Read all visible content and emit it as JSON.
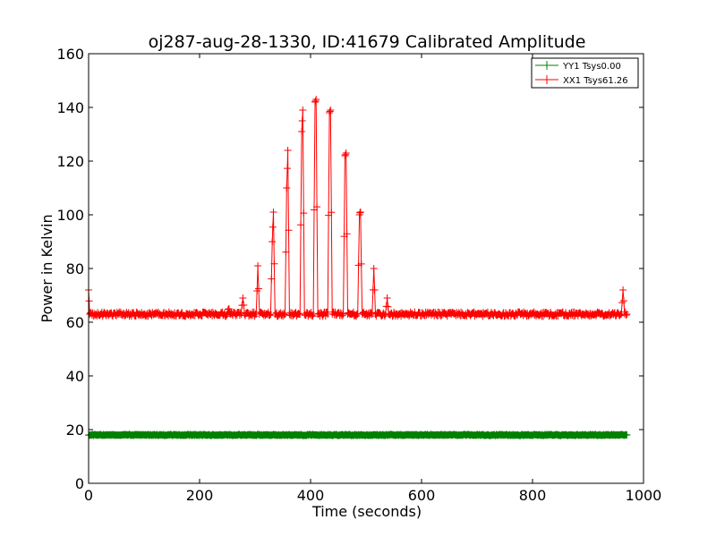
{
  "chart_data": {
    "type": "line",
    "title": "oj287-aug-28-1330, ID:41679 Calibrated Amplitude",
    "xlabel": "Time (seconds)",
    "ylabel": "Power in Kelvin",
    "xlim": [
      0,
      1000
    ],
    "ylim": [
      0,
      160
    ],
    "x_ticks": [
      0,
      200,
      400,
      600,
      800,
      1000
    ],
    "y_ticks": [
      0,
      20,
      40,
      60,
      80,
      100,
      120,
      140,
      160
    ],
    "x_tick_labels": [
      "0",
      "200",
      "400",
      "600",
      "800",
      "1000"
    ],
    "y_tick_labels": [
      "0",
      "20",
      "40",
      "60",
      "80",
      "100",
      "120",
      "140",
      "160"
    ],
    "grid": false,
    "legend_position": "top-right",
    "marker": "+",
    "series": [
      {
        "name": "YY1 Tsys0.00",
        "color": "#008000",
        "baseline": 18,
        "x_range": [
          0,
          970
        ],
        "points": [
          [
            0,
            18
          ],
          [
            970,
            18
          ]
        ]
      },
      {
        "name": "XX1 Tsys61.26",
        "color": "#ff0000",
        "baseline": 63,
        "x_range": [
          0,
          970
        ],
        "points": [
          [
            0,
            72
          ],
          [
            2,
            63
          ],
          [
            250,
            63
          ],
          [
            253,
            65
          ],
          [
            256,
            63
          ],
          [
            275,
            63
          ],
          [
            278,
            69
          ],
          [
            281,
            63
          ],
          [
            302,
            63
          ],
          [
            305,
            81
          ],
          [
            308,
            63
          ],
          [
            328,
            63
          ],
          [
            331,
            90
          ],
          [
            333,
            101
          ],
          [
            336,
            63
          ],
          [
            354,
            63
          ],
          [
            357,
            110
          ],
          [
            359,
            124
          ],
          [
            362,
            63
          ],
          [
            381,
            63
          ],
          [
            384,
            131
          ],
          [
            386,
            139
          ],
          [
            389,
            63
          ],
          [
            405,
            63
          ],
          [
            408,
            142
          ],
          [
            410,
            143
          ],
          [
            413,
            63
          ],
          [
            431,
            63
          ],
          [
            434,
            138
          ],
          [
            436,
            139
          ],
          [
            439,
            63
          ],
          [
            459,
            63
          ],
          [
            462,
            122
          ],
          [
            464,
            123
          ],
          [
            467,
            63
          ],
          [
            485,
            63
          ],
          [
            488,
            100
          ],
          [
            490,
            101
          ],
          [
            493,
            63
          ],
          [
            511,
            63
          ],
          [
            514,
            80
          ],
          [
            517,
            63
          ],
          [
            535,
            63
          ],
          [
            538,
            69
          ],
          [
            541,
            63
          ],
          [
            960,
            63
          ],
          [
            963,
            72
          ],
          [
            966,
            63
          ],
          [
            970,
            63
          ]
        ]
      }
    ]
  }
}
